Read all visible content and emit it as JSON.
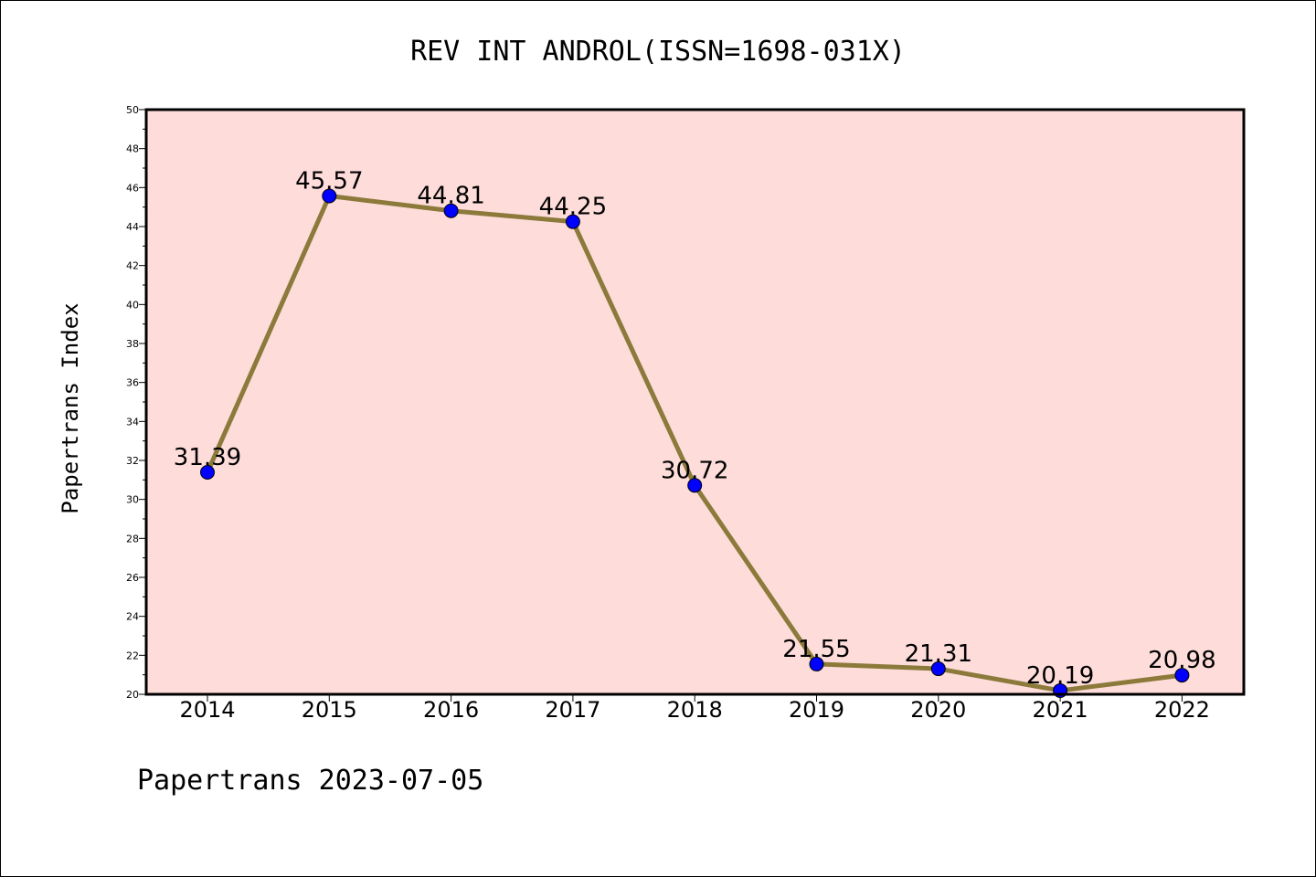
{
  "colors": {
    "plot_background": "#fddcda",
    "line": "#8b7a3a",
    "marker": "#0000ff",
    "axis": "#000000"
  },
  "chart_data": {
    "type": "line",
    "title": "REV INT ANDROL(ISSN=1698-031X)",
    "xlabel": "",
    "ylabel": "Papertrans Index",
    "footer": "Papertrans 2023-07-05",
    "ylim": [
      20,
      50
    ],
    "yticks": [
      20,
      22,
      24,
      26,
      28,
      30,
      32,
      34,
      36,
      38,
      40,
      42,
      44,
      46,
      48,
      50
    ],
    "categories": [
      "2014",
      "2015",
      "2016",
      "2017",
      "2018",
      "2019",
      "2020",
      "2021",
      "2022"
    ],
    "series": [
      {
        "values": [
          31.39,
          45.57,
          44.81,
          44.25,
          30.72,
          21.55,
          21.31,
          20.19,
          20.98
        ],
        "labels": [
          "31.39",
          "45.57",
          "44.81",
          "44.25",
          "30.72",
          "21.55",
          "21.31",
          "20.19",
          "20.98"
        ]
      }
    ],
    "grid": false,
    "legend": "none"
  }
}
